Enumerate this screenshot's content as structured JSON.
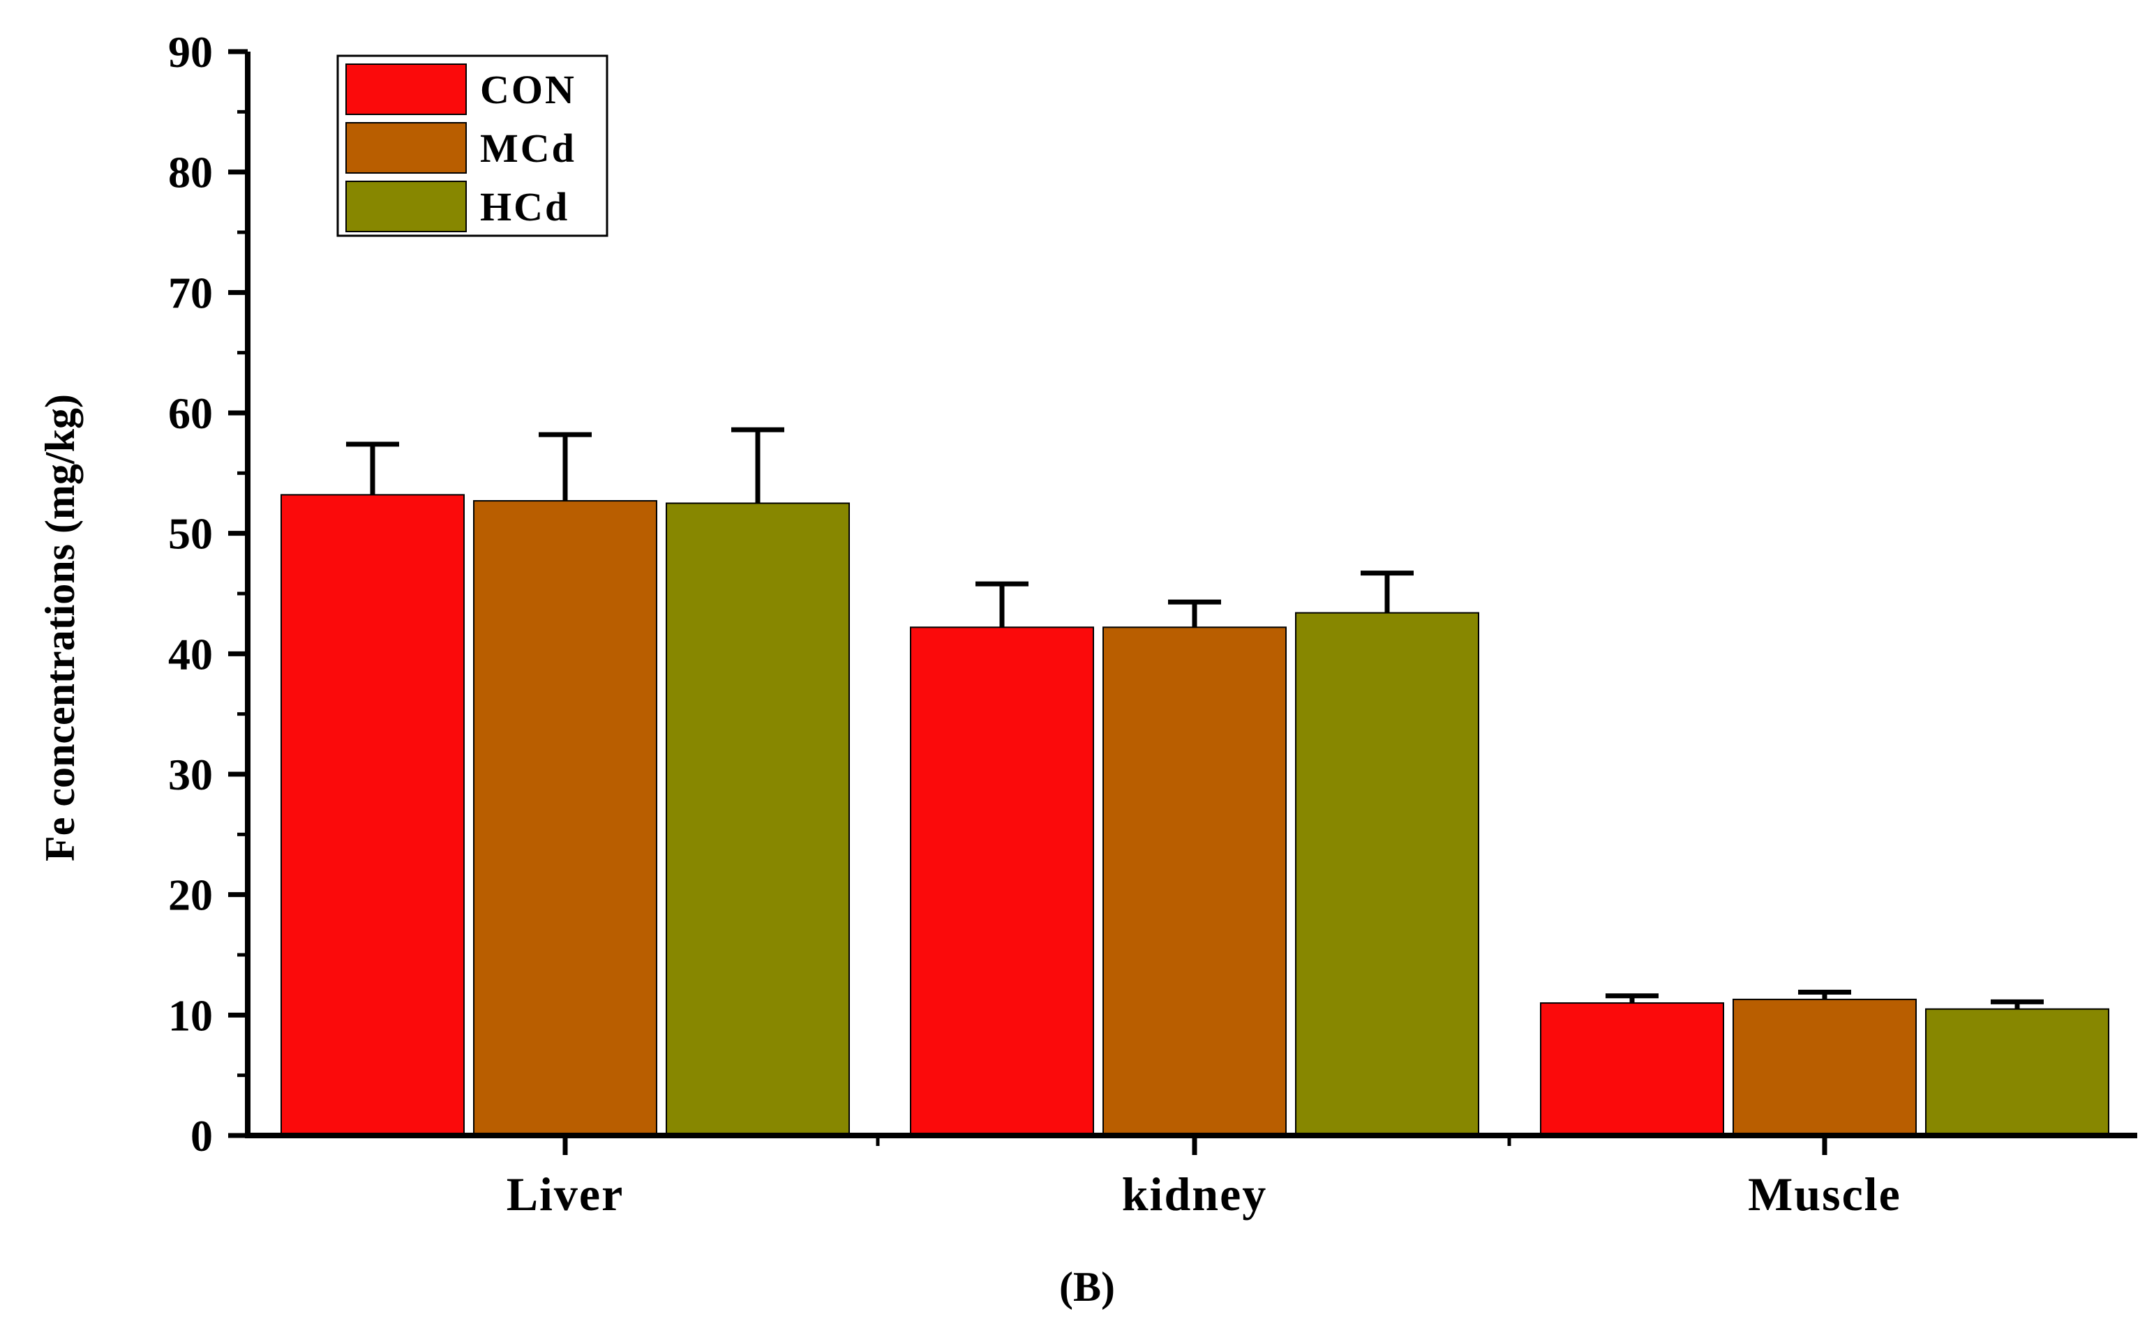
{
  "chart_data": {
    "type": "bar",
    "categories": [
      "Liver",
      "kidney",
      "Muscle"
    ],
    "series": [
      {
        "name": "CON",
        "color": "#fb0a0b",
        "values": [
          53.2,
          42.2,
          11.0
        ],
        "errors": [
          4.2,
          3.6,
          0.6
        ]
      },
      {
        "name": "MCd",
        "color": "#b95e00",
        "values": [
          52.7,
          42.2,
          11.3
        ],
        "errors": [
          5.5,
          2.1,
          0.6
        ]
      },
      {
        "name": "HCd",
        "color": "#878700",
        "values": [
          52.5,
          43.4,
          10.5
        ],
        "errors": [
          6.1,
          3.3,
          0.6
        ]
      }
    ],
    "ylabel": "Fe concentrations (mg/kg)",
    "xlabel": "",
    "ylim": [
      0,
      90
    ],
    "yticks": [
      0,
      10,
      20,
      30,
      40,
      50,
      60,
      70,
      80,
      90
    ],
    "legend_position": "top-left",
    "panel_label": "(B)"
  }
}
